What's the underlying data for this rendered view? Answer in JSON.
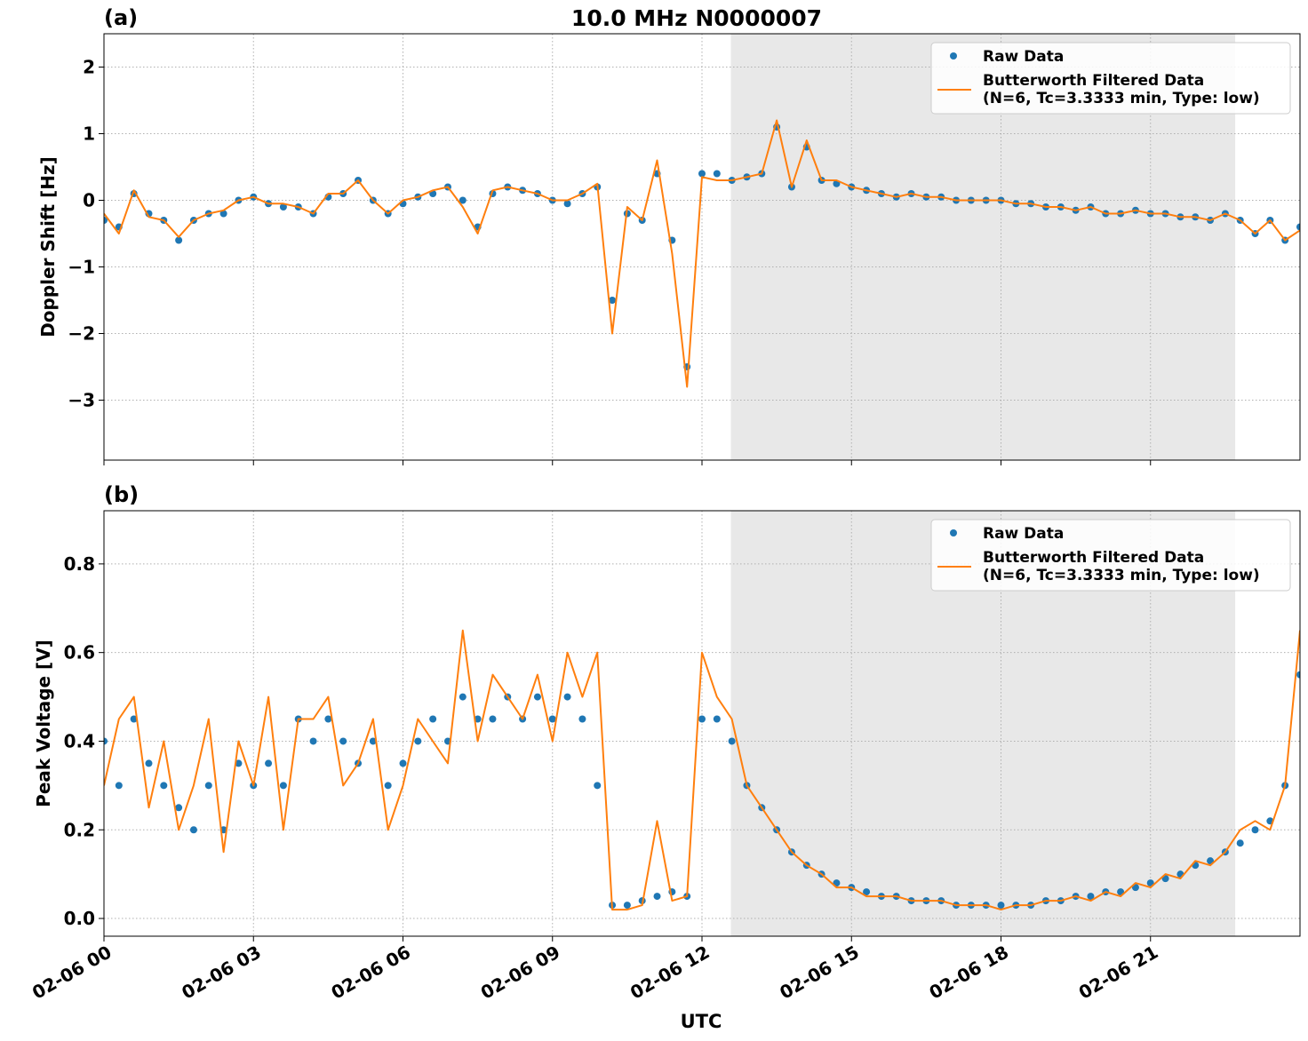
{
  "figure": {
    "title": "10.0 MHz N0000007",
    "xlabel": "UTC"
  },
  "colors": {
    "raw": "#1f77b4",
    "filtered": "#ff7f0e",
    "night_shade": "#e8e8e8",
    "grid": "#b0b0b0",
    "axis": "#000000"
  },
  "chart_data": [
    {
      "type": "scatter",
      "panel_label": "(a)",
      "ylabel": "Doppler Shift [Hz]",
      "xlim_hours": [
        0,
        24
      ],
      "ylim": [
        -3.9,
        2.5
      ],
      "x_tick_labels": [
        "02-06 00",
        "02-06 03",
        "02-06 06",
        "02-06 09",
        "02-06 12",
        "02-06 15",
        "02-06 18",
        "02-06 21"
      ],
      "x_tick_labels_visible": false,
      "y_ticks": [
        2,
        1,
        0,
        -1,
        -2,
        -3
      ],
      "y_tick_labels": [
        "2",
        "1",
        "0",
        "−1",
        "−2",
        "−3"
      ],
      "grid": true,
      "shaded_region_hours": [
        12.58,
        22.7
      ],
      "legend": {
        "placement": "top-right",
        "entries": [
          "Raw Data",
          "Butterworth Filtered Data",
          "(N=6, Tc=3.3333 min, Type: low)"
        ]
      },
      "series": [
        {
          "name": "Raw Data",
          "style": "points",
          "x": [
            0,
            0.3,
            0.6,
            0.9,
            1.2,
            1.5,
            1.8,
            2.1,
            2.4,
            2.7,
            3.0,
            3.3,
            3.6,
            3.9,
            4.2,
            4.5,
            4.8,
            5.1,
            5.4,
            5.7,
            6.0,
            6.3,
            6.6,
            6.9,
            7.2,
            7.5,
            7.8,
            8.1,
            8.4,
            8.7,
            9.0,
            9.3,
            9.6,
            9.9,
            10.2,
            10.5,
            10.8,
            11.1,
            11.4,
            11.7,
            12.0,
            12.3,
            12.6,
            12.9,
            13.2,
            13.5,
            13.8,
            14.1,
            14.4,
            14.7,
            15.0,
            15.3,
            15.6,
            15.9,
            16.2,
            16.5,
            16.8,
            17.1,
            17.4,
            17.7,
            18.0,
            18.3,
            18.6,
            18.9,
            19.2,
            19.5,
            19.8,
            20.1,
            20.4,
            20.7,
            21.0,
            21.3,
            21.6,
            21.9,
            22.2,
            22.5,
            22.8,
            23.1,
            23.4,
            23.7,
            24.0
          ],
          "y": [
            -0.3,
            -0.4,
            0.1,
            -0.2,
            -0.3,
            -0.6,
            -0.3,
            -0.2,
            -0.2,
            0.0,
            0.05,
            -0.05,
            -0.1,
            -0.1,
            -0.2,
            0.05,
            0.1,
            0.3,
            0.0,
            -0.2,
            -0.05,
            0.05,
            0.1,
            0.2,
            0.0,
            -0.4,
            0.1,
            0.2,
            0.15,
            0.1,
            0.0,
            -0.05,
            0.1,
            0.2,
            -1.5,
            -0.2,
            -0.3,
            0.4,
            -0.6,
            -2.5,
            0.4,
            0.4,
            0.3,
            0.35,
            0.4,
            1.1,
            0.2,
            0.8,
            0.3,
            0.25,
            0.2,
            0.15,
            0.1,
            0.05,
            0.1,
            0.05,
            0.05,
            0.0,
            0.0,
            0.0,
            0.0,
            -0.05,
            -0.05,
            -0.1,
            -0.1,
            -0.15,
            -0.1,
            -0.2,
            -0.2,
            -0.15,
            -0.2,
            -0.2,
            -0.25,
            -0.25,
            -0.3,
            -0.2,
            -0.3,
            -0.5,
            -0.3,
            -0.6,
            -0.4
          ]
        },
        {
          "name": "Butterworth Filtered Data",
          "style": "line",
          "x": [
            0,
            0.3,
            0.6,
            0.9,
            1.2,
            1.5,
            1.8,
            2.1,
            2.4,
            2.7,
            3.0,
            3.3,
            3.6,
            3.9,
            4.2,
            4.5,
            4.8,
            5.1,
            5.4,
            5.7,
            6.0,
            6.3,
            6.6,
            6.9,
            7.2,
            7.5,
            7.8,
            8.1,
            8.4,
            8.7,
            9.0,
            9.3,
            9.6,
            9.9,
            10.2,
            10.5,
            10.8,
            11.1,
            11.4,
            11.7,
            12.0,
            12.3,
            12.6,
            12.9,
            13.2,
            13.5,
            13.8,
            14.1,
            14.4,
            14.7,
            15.0,
            15.3,
            15.6,
            15.9,
            16.2,
            16.5,
            16.8,
            17.1,
            17.4,
            17.7,
            18.0,
            18.3,
            18.6,
            18.9,
            19.2,
            19.5,
            19.8,
            20.1,
            20.4,
            20.7,
            21.0,
            21.3,
            21.6,
            21.9,
            22.2,
            22.5,
            22.8,
            23.1,
            23.4,
            23.7,
            24.0
          ],
          "y": [
            -0.2,
            -0.5,
            0.15,
            -0.25,
            -0.3,
            -0.55,
            -0.3,
            -0.2,
            -0.15,
            0.0,
            0.05,
            -0.05,
            -0.05,
            -0.1,
            -0.2,
            0.1,
            0.1,
            0.3,
            0.0,
            -0.2,
            0.0,
            0.05,
            0.15,
            0.2,
            -0.1,
            -0.5,
            0.15,
            0.2,
            0.15,
            0.1,
            0.0,
            0.0,
            0.1,
            0.25,
            -2.0,
            -0.1,
            -0.3,
            0.6,
            -0.8,
            -2.8,
            0.35,
            0.3,
            0.3,
            0.35,
            0.4,
            1.2,
            0.2,
            0.9,
            0.3,
            0.3,
            0.2,
            0.15,
            0.1,
            0.05,
            0.1,
            0.05,
            0.05,
            0.0,
            0.0,
            0.0,
            0.0,
            -0.05,
            -0.05,
            -0.1,
            -0.1,
            -0.15,
            -0.1,
            -0.2,
            -0.2,
            -0.15,
            -0.2,
            -0.2,
            -0.25,
            -0.25,
            -0.3,
            -0.2,
            -0.3,
            -0.5,
            -0.3,
            -0.6,
            -0.45
          ]
        }
      ]
    },
    {
      "type": "scatter",
      "panel_label": "(b)",
      "ylabel": "Peak Voltage [V]",
      "xlim_hours": [
        0,
        24
      ],
      "ylim": [
        -0.04,
        0.92
      ],
      "x_tick_labels": [
        "02-06 00",
        "02-06 03",
        "02-06 06",
        "02-06 09",
        "02-06 12",
        "02-06 15",
        "02-06 18",
        "02-06 21"
      ],
      "x_tick_labels_visible": true,
      "y_ticks": [
        0.0,
        0.2,
        0.4,
        0.6,
        0.8
      ],
      "y_tick_labels": [
        "0.0",
        "0.2",
        "0.4",
        "0.6",
        "0.8"
      ],
      "grid": true,
      "shaded_region_hours": [
        12.58,
        22.7
      ],
      "legend": {
        "placement": "top-right",
        "entries": [
          "Raw Data",
          "Butterworth Filtered Data",
          "(N=6, Tc=3.3333 min, Type: low)"
        ]
      },
      "series": [
        {
          "name": "Raw Data",
          "style": "points",
          "x": [
            0,
            0.3,
            0.6,
            0.9,
            1.2,
            1.5,
            1.8,
            2.1,
            2.4,
            2.7,
            3.0,
            3.3,
            3.6,
            3.9,
            4.2,
            4.5,
            4.8,
            5.1,
            5.4,
            5.7,
            6.0,
            6.3,
            6.6,
            6.9,
            7.2,
            7.5,
            7.8,
            8.1,
            8.4,
            8.7,
            9.0,
            9.3,
            9.6,
            9.9,
            10.2,
            10.5,
            10.8,
            11.1,
            11.4,
            11.7,
            12.0,
            12.3,
            12.6,
            12.9,
            13.2,
            13.5,
            13.8,
            14.1,
            14.4,
            14.7,
            15.0,
            15.3,
            15.6,
            15.9,
            16.2,
            16.5,
            16.8,
            17.1,
            17.4,
            17.7,
            18.0,
            18.3,
            18.6,
            18.9,
            19.2,
            19.5,
            19.8,
            20.1,
            20.4,
            20.7,
            21.0,
            21.3,
            21.6,
            21.9,
            22.2,
            22.5,
            22.8,
            23.1,
            23.4,
            23.7,
            24.0
          ],
          "y": [
            0.4,
            0.3,
            0.45,
            0.35,
            0.3,
            0.25,
            0.2,
            0.3,
            0.2,
            0.35,
            0.3,
            0.35,
            0.3,
            0.45,
            0.4,
            0.45,
            0.4,
            0.35,
            0.4,
            0.3,
            0.35,
            0.4,
            0.45,
            0.4,
            0.5,
            0.45,
            0.45,
            0.5,
            0.45,
            0.5,
            0.45,
            0.5,
            0.45,
            0.3,
            0.03,
            0.03,
            0.04,
            0.05,
            0.06,
            0.05,
            0.45,
            0.45,
            0.4,
            0.3,
            0.25,
            0.2,
            0.15,
            0.12,
            0.1,
            0.08,
            0.07,
            0.06,
            0.05,
            0.05,
            0.04,
            0.04,
            0.04,
            0.03,
            0.03,
            0.03,
            0.03,
            0.03,
            0.03,
            0.04,
            0.04,
            0.05,
            0.05,
            0.06,
            0.06,
            0.07,
            0.08,
            0.09,
            0.1,
            0.12,
            0.13,
            0.15,
            0.17,
            0.2,
            0.22,
            0.3,
            0.55
          ]
        },
        {
          "name": "Butterworth Filtered Data",
          "style": "line",
          "x": [
            0,
            0.3,
            0.6,
            0.9,
            1.2,
            1.5,
            1.8,
            2.1,
            2.4,
            2.7,
            3.0,
            3.3,
            3.6,
            3.9,
            4.2,
            4.5,
            4.8,
            5.1,
            5.4,
            5.7,
            6.0,
            6.3,
            6.6,
            6.9,
            7.2,
            7.5,
            7.8,
            8.1,
            8.4,
            8.7,
            9.0,
            9.3,
            9.6,
            9.9,
            10.2,
            10.5,
            10.8,
            11.1,
            11.4,
            11.7,
            12.0,
            12.3,
            12.6,
            12.9,
            13.2,
            13.5,
            13.8,
            14.1,
            14.4,
            14.7,
            15.0,
            15.3,
            15.6,
            15.9,
            16.2,
            16.5,
            16.8,
            17.1,
            17.4,
            17.7,
            18.0,
            18.3,
            18.6,
            18.9,
            19.2,
            19.5,
            19.8,
            20.1,
            20.4,
            20.7,
            21.0,
            21.3,
            21.6,
            21.9,
            22.2,
            22.5,
            22.8,
            23.1,
            23.4,
            23.7,
            24.0
          ],
          "y": [
            0.3,
            0.45,
            0.5,
            0.25,
            0.4,
            0.2,
            0.3,
            0.45,
            0.15,
            0.4,
            0.3,
            0.5,
            0.2,
            0.45,
            0.45,
            0.5,
            0.3,
            0.35,
            0.45,
            0.2,
            0.3,
            0.45,
            0.4,
            0.35,
            0.65,
            0.4,
            0.55,
            0.5,
            0.45,
            0.55,
            0.4,
            0.6,
            0.5,
            0.6,
            0.02,
            0.02,
            0.03,
            0.22,
            0.04,
            0.05,
            0.6,
            0.5,
            0.45,
            0.3,
            0.25,
            0.2,
            0.15,
            0.12,
            0.1,
            0.07,
            0.07,
            0.05,
            0.05,
            0.05,
            0.04,
            0.04,
            0.04,
            0.03,
            0.03,
            0.03,
            0.02,
            0.03,
            0.03,
            0.04,
            0.04,
            0.05,
            0.04,
            0.06,
            0.05,
            0.08,
            0.07,
            0.1,
            0.09,
            0.13,
            0.12,
            0.15,
            0.2,
            0.22,
            0.2,
            0.3,
            0.65
          ]
        }
      ]
    }
  ]
}
